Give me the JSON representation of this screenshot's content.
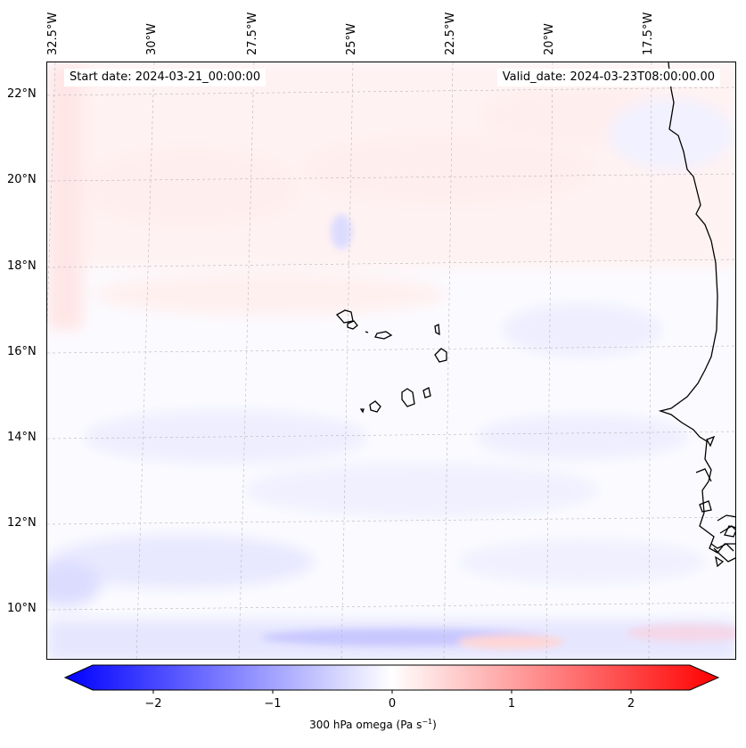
{
  "map": {
    "start_date_text": "Start date: 2024-03-21_00:00:00",
    "valid_date_text": "Valid_date: 2024-03-23T08:00:00.00",
    "lon_labels": [
      "32.5°W",
      "30°W",
      "27.5°W",
      "25°W",
      "22.5°W",
      "20°W",
      "17.5°W"
    ],
    "lat_labels": [
      "22°N",
      "20°N",
      "18°N",
      "16°N",
      "14°N",
      "12°N",
      "10°N"
    ],
    "field": "300 hPa omega",
    "extent": {
      "lon_min": -32.6,
      "lon_max": -15.6,
      "lat_min": 8.9,
      "lat_max": 22.7
    }
  },
  "colorbar": {
    "label_text": "300 hPa omega (Pa s",
    "label_exp": "−1",
    "label_close": ")",
    "ticks": [
      "−2",
      "−1",
      "0",
      "1",
      "2"
    ],
    "min": -2.6,
    "max": 2.6,
    "colors": {
      "negative": "#0000ff",
      "zero": "#ffffff",
      "positive": "#ff0000"
    }
  }
}
